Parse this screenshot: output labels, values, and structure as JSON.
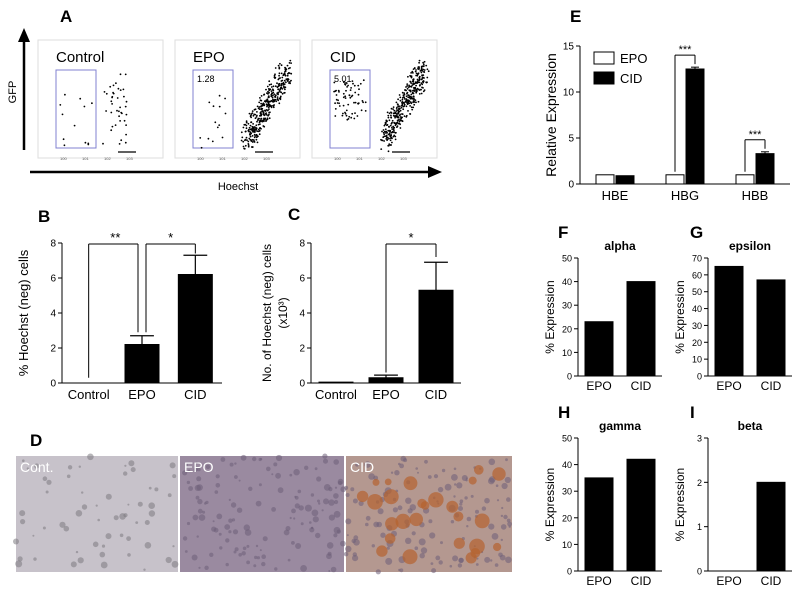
{
  "panel_letters": {
    "A": "A",
    "B": "B",
    "C": "C",
    "D": "D",
    "E": "E",
    "F": "F",
    "G": "G",
    "H": "H",
    "I": "I"
  },
  "flow": {
    "y_axis_label": "GFP",
    "x_axis_label": "Hoechst",
    "plots": [
      {
        "label": "Control",
        "gate_value": ""
      },
      {
        "label": "EPO",
        "gate_value": "1.28"
      },
      {
        "label": "CID",
        "gate_value": "5.01"
      }
    ]
  },
  "micrographs": [
    {
      "label": "Cont.",
      "bg": "#c7c2ca"
    },
    {
      "label": "EPO",
      "bg": "#9a8aa0"
    },
    {
      "label": "CID",
      "bg": "#b49890"
    }
  ],
  "chart_data": [
    {
      "panel": "B",
      "type": "bar",
      "categories": [
        "Control",
        "EPO",
        "CID"
      ],
      "values": [
        0,
        2.2,
        6.2
      ],
      "errors": [
        0,
        0.5,
        1.1
      ],
      "ylabel": "% Hoechst (neg) cells",
      "ylim": [
        0,
        8
      ],
      "yticks": [
        "0",
        "2",
        "4",
        "6",
        "8"
      ],
      "significance": [
        {
          "from": 0,
          "to": 1,
          "label": "**"
        },
        {
          "from": 1,
          "to": 2,
          "label": "*"
        }
      ],
      "color": "#000000"
    },
    {
      "panel": "C",
      "type": "bar",
      "categories": [
        "Control",
        "EPO",
        "CID"
      ],
      "values": [
        0.05,
        0.3,
        5.3
      ],
      "errors": [
        0,
        0.15,
        1.6
      ],
      "ylabel": "No. of Hoechst (neg) cells",
      "ylabel2": "(x10³)",
      "ylim": [
        0,
        8
      ],
      "yticks": [
        "0",
        "2",
        "4",
        "6",
        "8"
      ],
      "significance": [
        {
          "from": 1,
          "to": 2,
          "label": "*"
        }
      ],
      "color": "#000000"
    },
    {
      "panel": "E",
      "type": "bar",
      "categories": [
        "HBE",
        "HBG",
        "HBB"
      ],
      "series": [
        {
          "name": "EPO",
          "values": [
            1,
            1,
            1
          ],
          "errors": [
            0,
            0,
            0
          ],
          "color": "#ffffff"
        },
        {
          "name": "CID",
          "values": [
            0.9,
            12.5,
            3.3
          ],
          "errors": [
            0,
            0.2,
            0.2
          ],
          "color": "#000000"
        }
      ],
      "ylabel": "Relative Expression",
      "ylim": [
        0,
        15
      ],
      "yticks": [
        "0",
        "5",
        "10",
        "15"
      ],
      "significance": [
        {
          "category": 1,
          "label": "***"
        },
        {
          "category": 2,
          "label": "***"
        }
      ],
      "legend": "top-left"
    },
    {
      "panel": "F",
      "type": "bar",
      "title": "alpha",
      "categories": [
        "EPO",
        "CID"
      ],
      "values": [
        23,
        40
      ],
      "ylabel": "% Expression",
      "ylim": [
        0,
        50
      ],
      "yticks": [
        "0",
        "10",
        "20",
        "30",
        "40",
        "50"
      ],
      "color": "#000000"
    },
    {
      "panel": "G",
      "type": "bar",
      "title": "epsilon",
      "categories": [
        "EPO",
        "CID"
      ],
      "values": [
        65,
        57
      ],
      "ylabel": "% Expression",
      "ylim": [
        0,
        70
      ],
      "yticks": [
        "0",
        "10",
        "20",
        "30",
        "40",
        "50",
        "60",
        "70"
      ],
      "color": "#000000"
    },
    {
      "panel": "H",
      "type": "bar",
      "title": "gamma",
      "categories": [
        "EPO",
        "CID"
      ],
      "values": [
        35,
        42
      ],
      "ylabel": "% Expression",
      "ylim": [
        0,
        50
      ],
      "yticks": [
        "0",
        "10",
        "20",
        "30",
        "40",
        "50"
      ],
      "color": "#000000"
    },
    {
      "panel": "I",
      "type": "bar",
      "title": "beta",
      "categories": [
        "EPO",
        "CID"
      ],
      "values": [
        0,
        2
      ],
      "ylabel": "% Expression",
      "ylim": [
        0,
        3
      ],
      "yticks": [
        "0",
        "1",
        "2",
        "3"
      ],
      "color": "#000000"
    }
  ]
}
